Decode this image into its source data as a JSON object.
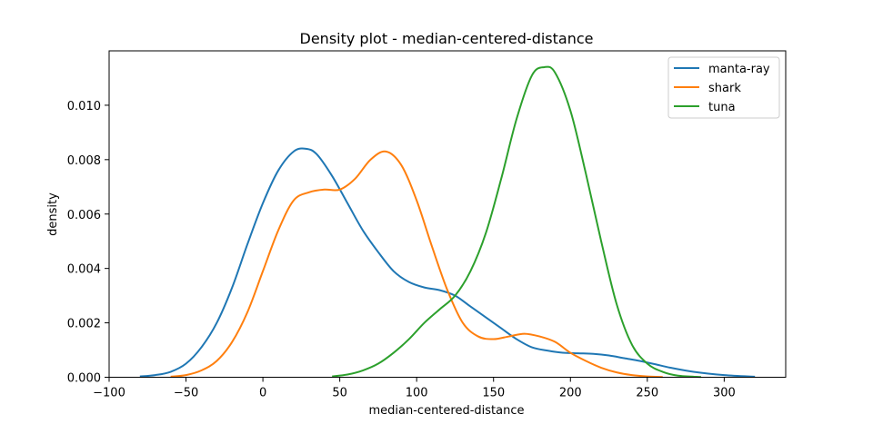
{
  "chart_data": {
    "type": "line",
    "title": "Density plot - median-centered-distance",
    "xlabel": "median-centered-distance",
    "ylabel": "density",
    "xlim": [
      -100,
      340
    ],
    "ylim": [
      0,
      0.012
    ],
    "xticks": [
      -100,
      -50,
      0,
      50,
      100,
      150,
      200,
      250,
      300
    ],
    "xtick_labels": [
      "−100",
      "−50",
      "0",
      "50",
      "100",
      "150",
      "200",
      "250",
      "300"
    ],
    "yticks": [
      0,
      0.002,
      0.004,
      0.006,
      0.008,
      0.01
    ],
    "ytick_labels": [
      "0.000",
      "0.002",
      "0.004",
      "0.006",
      "0.008",
      "0.010"
    ],
    "grid": false,
    "legend_position": "top-right",
    "series": [
      {
        "name": "manta-ray",
        "color": "#1f77b4",
        "x": [
          -80,
          -70,
          -60,
          -50,
          -40,
          -30,
          -20,
          -10,
          0,
          10,
          20,
          28,
          35,
          45,
          55,
          65,
          75,
          85,
          95,
          105,
          115,
          125,
          135,
          145,
          155,
          165,
          175,
          185,
          195,
          205,
          215,
          225,
          235,
          245,
          255,
          265,
          280,
          300,
          320
        ],
        "y": [
          3e-05,
          8e-05,
          0.0002,
          0.0005,
          0.0011,
          0.002,
          0.0033,
          0.0049,
          0.0064,
          0.0076,
          0.0083,
          0.0084,
          0.0082,
          0.0074,
          0.0064,
          0.0054,
          0.0046,
          0.0039,
          0.0035,
          0.0033,
          0.0032,
          0.003,
          0.0026,
          0.0022,
          0.0018,
          0.0014,
          0.0011,
          0.00098,
          0.0009,
          0.00088,
          0.00086,
          0.0008,
          0.0007,
          0.0006,
          0.00048,
          0.00035,
          0.0002,
          8e-05,
          2e-05
        ]
      },
      {
        "name": "shark",
        "color": "#ff7f0e",
        "x": [
          -60,
          -50,
          -40,
          -30,
          -20,
          -10,
          0,
          10,
          20,
          30,
          40,
          50,
          60,
          70,
          80,
          90,
          100,
          110,
          120,
          130,
          140,
          150,
          160,
          170,
          180,
          190,
          200,
          210,
          220,
          230,
          240,
          250,
          260
        ],
        "y": [
          2e-05,
          8e-05,
          0.00025,
          0.0006,
          0.0013,
          0.0024,
          0.0039,
          0.0054,
          0.0065,
          0.0068,
          0.0069,
          0.0069,
          0.0073,
          0.008,
          0.0083,
          0.0078,
          0.0065,
          0.0048,
          0.0032,
          0.002,
          0.0015,
          0.0014,
          0.0015,
          0.0016,
          0.0015,
          0.0013,
          0.0009,
          0.0006,
          0.00035,
          0.00018,
          8e-05,
          3e-05,
          1e-05
        ]
      },
      {
        "name": "tuna",
        "color": "#2ca02c",
        "x": [
          45,
          55,
          65,
          75,
          85,
          95,
          105,
          115,
          125,
          135,
          145,
          155,
          165,
          175,
          183,
          190,
          200,
          210,
          220,
          230,
          240,
          250,
          260,
          270,
          285
        ],
        "y": [
          3e-05,
          0.0001,
          0.00025,
          0.0005,
          0.0009,
          0.0014,
          0.002,
          0.0025,
          0.003,
          0.0039,
          0.0053,
          0.0073,
          0.0095,
          0.0111,
          0.0114,
          0.0112,
          0.0098,
          0.0075,
          0.005,
          0.0027,
          0.0012,
          0.0005,
          0.0002,
          6e-05,
          1e-05
        ]
      }
    ]
  }
}
